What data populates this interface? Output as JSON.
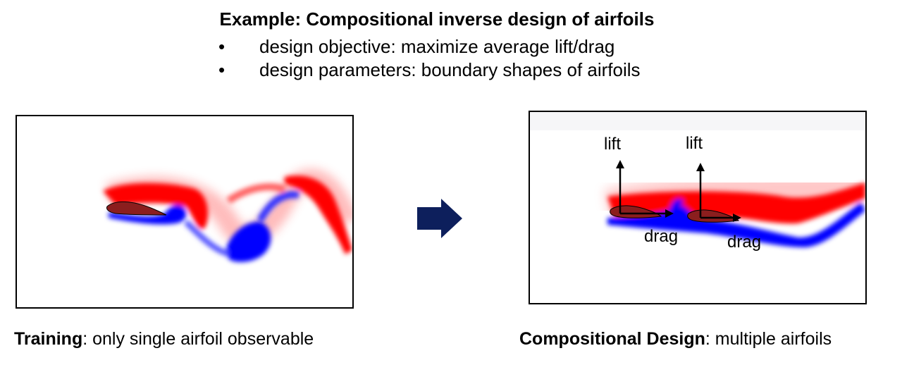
{
  "title": "Example: Compositional inverse design of airfoils",
  "bullets": [
    "design objective: maximize average lift/drag",
    "design parameters: boundary shapes of airfoils"
  ],
  "bullet_symbol": "•",
  "left_panel": {
    "caption_bold": "Training",
    "caption_rest": ": only single airfoil observable"
  },
  "right_panel": {
    "caption_bold": "Compositional Design",
    "caption_rest": ": multiple airfoils",
    "labels": {
      "lift_1": "lift",
      "lift_2": "lift",
      "drag_1": "drag",
      "drag_2": "drag"
    }
  },
  "colors": {
    "positive_vorticity": "#ff0000",
    "negative_vorticity": "#0000ff",
    "airfoil": "#8b1e1e",
    "arrow": "#0d1f5c"
  }
}
